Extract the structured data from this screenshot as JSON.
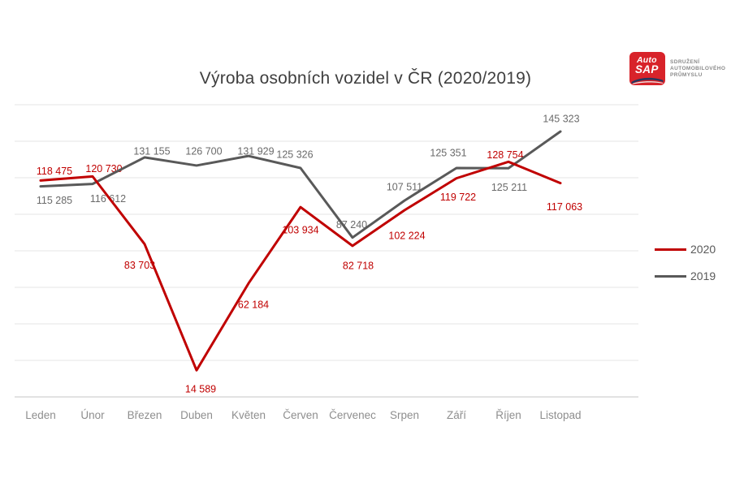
{
  "title": "Výroba osobních vozidel v ČR (2020/2019)",
  "logo": {
    "brand_top": "Auto",
    "brand_bottom": "SAP",
    "org_lines": [
      "Sdružení",
      "Automobilového",
      "Průmyslu"
    ],
    "mark_color": "#d8232a",
    "swoosh_color": "#24375e"
  },
  "chart_data": {
    "type": "line",
    "title": "Výroba osobních vozidel v ČR (2020/2019)",
    "categories": [
      "Leden",
      "Únor",
      "Březen",
      "Duben",
      "Květen",
      "Červen",
      "Červenec",
      "Srpen",
      "Září",
      "Říjen",
      "Listopad"
    ],
    "series": [
      {
        "name": "2020",
        "color": "#c00000",
        "label_color": "#c00000",
        "values": [
          118475,
          120730,
          83703,
          14589,
          62184,
          103934,
          82718,
          102224,
          119722,
          128754,
          117063
        ],
        "labels": [
          "118 475",
          "120 730",
          "83 703",
          "14 589",
          "62 184",
          "103 934",
          "82 718",
          "102 224",
          "119 722",
          "128 754",
          "117 063"
        ],
        "label_offsets": [
          [
            17,
            -12
          ],
          [
            14,
            -10
          ],
          [
            -6,
            26
          ],
          [
            5,
            23
          ],
          [
            6,
            26
          ],
          [
            0,
            28
          ],
          [
            7,
            24
          ],
          [
            3,
            31
          ],
          [
            2,
            23
          ],
          [
            -4,
            -9
          ],
          [
            5,
            29
          ]
        ]
      },
      {
        "name": "2019",
        "color": "#595959",
        "label_color": "#6a6a6a",
        "values": [
          115285,
          116612,
          131155,
          126700,
          131929,
          125326,
          87240,
          107511,
          125351,
          125211,
          145323
        ],
        "labels": [
          "115 285",
          "116 612",
          "131 155",
          "126 700",
          "131 929",
          "125 326",
          "87 240",
          "107 511",
          "125 351",
          "125 211",
          "145 323"
        ],
        "label_offsets": [
          [
            17,
            17
          ],
          [
            19,
            18
          ],
          [
            9,
            -8
          ],
          [
            9,
            -18
          ],
          [
            9,
            -6
          ],
          [
            -7,
            -17
          ],
          [
            -1,
            -16
          ],
          [
            0,
            -17
          ],
          [
            -10,
            -19
          ],
          [
            1,
            23
          ],
          [
            1,
            -16
          ]
        ]
      }
    ],
    "ylim": [
      0,
      160000
    ],
    "grid_step": 20000,
    "grid": "horizontal",
    "legend_position": "right",
    "x_slots": 12,
    "xlabel": "",
    "ylabel": ""
  },
  "legend_note": "series order top to bottom: 2020, 2019"
}
